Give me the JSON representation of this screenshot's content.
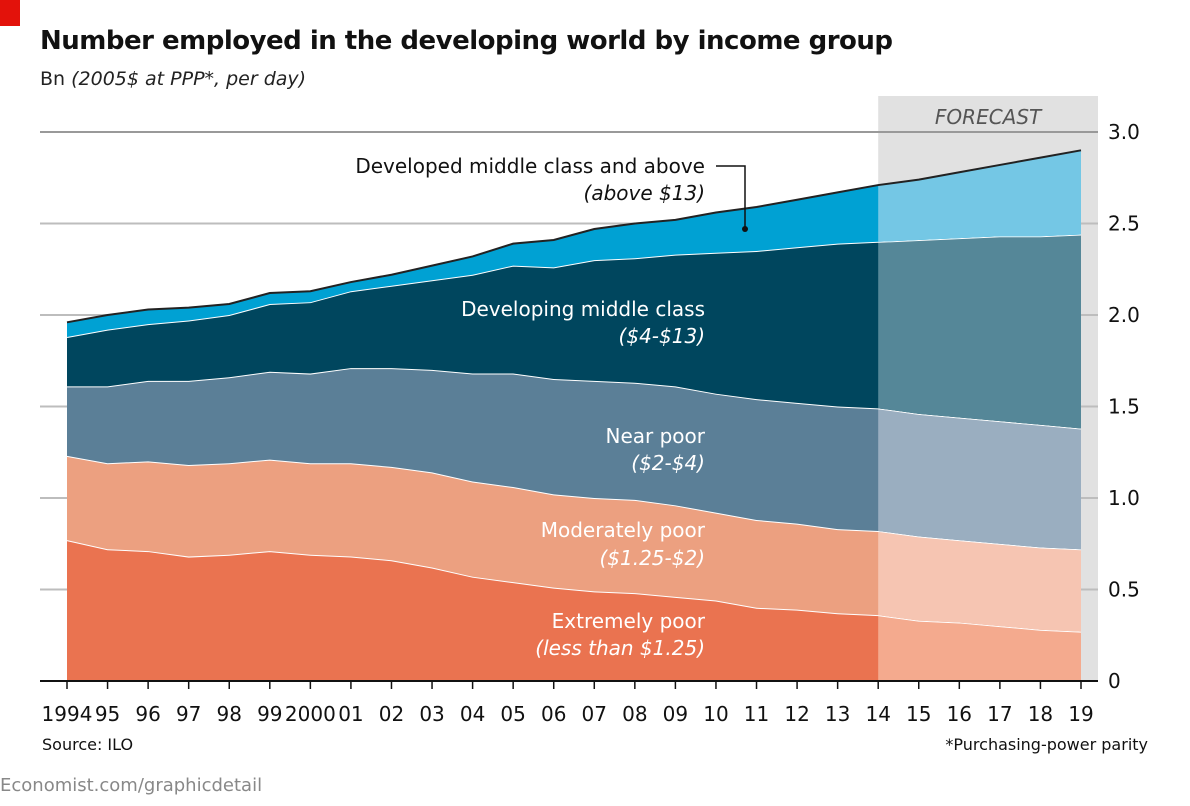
{
  "header": {
    "title": "Number employed in the developing world by income group",
    "subtitle_unit": "Bn",
    "subtitle_detail": "(2005$ at PPP*, per day)"
  },
  "footer": {
    "source": "Source: ILO",
    "note": "*Purchasing-power parity",
    "site": "Economist.com/graphicdetail"
  },
  "chart_data": {
    "type": "area",
    "stacked": true,
    "title": "Number employed in the developing world by income group",
    "ylabel": "Bn (2005$ at PPP*, per day)",
    "ylim": [
      0,
      3.0
    ],
    "yticks": [
      0,
      0.5,
      1.0,
      1.5,
      2.0,
      2.5,
      3.0
    ],
    "ytick_labels": [
      "0",
      "0.5",
      "1.0",
      "1.5",
      "2.0",
      "2.5",
      "3.0"
    ],
    "y_axis_side": "right",
    "grid": true,
    "x": [
      1994,
      1995,
      1996,
      1997,
      1998,
      1999,
      2000,
      2001,
      2002,
      2003,
      2004,
      2005,
      2006,
      2007,
      2008,
      2009,
      2010,
      2011,
      2012,
      2013,
      2014,
      2015,
      2016,
      2017,
      2018,
      2019
    ],
    "xtick_labels": [
      "1994",
      "95",
      "96",
      "97",
      "98",
      "99",
      "2000",
      "01",
      "02",
      "03",
      "04",
      "05",
      "06",
      "07",
      "08",
      "09",
      "10",
      "11",
      "12",
      "13",
      "14",
      "15",
      "16",
      "17",
      "18",
      "19"
    ],
    "forecast": {
      "label": "FORECAST",
      "from": 2014,
      "to": 2019
    },
    "series": [
      {
        "name": "Extremely poor",
        "sub": "(less than $1.25)",
        "color": "#ea7350",
        "forecast_color": "#f4aa8e",
        "label_color": "#ffffff",
        "values": [
          0.77,
          0.72,
          0.71,
          0.68,
          0.69,
          0.71,
          0.69,
          0.68,
          0.66,
          0.62,
          0.57,
          0.54,
          0.51,
          0.49,
          0.48,
          0.46,
          0.44,
          0.4,
          0.39,
          0.37,
          0.36,
          0.33,
          0.32,
          0.3,
          0.28,
          0.27
        ]
      },
      {
        "name": "Moderately poor",
        "sub": "($1.25-$2)",
        "color": "#eca080",
        "forecast_color": "#f6c5b2",
        "label_color": "#ffffff",
        "values": [
          0.46,
          0.47,
          0.49,
          0.5,
          0.5,
          0.5,
          0.5,
          0.51,
          0.51,
          0.52,
          0.52,
          0.52,
          0.51,
          0.51,
          0.51,
          0.5,
          0.48,
          0.48,
          0.47,
          0.46,
          0.46,
          0.46,
          0.45,
          0.45,
          0.45,
          0.45
        ]
      },
      {
        "name": "Near poor",
        "sub": "($2-$4)",
        "color": "#5b7f97",
        "forecast_color": "#9aaec0",
        "label_color": "#ffffff",
        "values": [
          0.38,
          0.42,
          0.44,
          0.46,
          0.47,
          0.48,
          0.49,
          0.52,
          0.54,
          0.56,
          0.59,
          0.62,
          0.63,
          0.64,
          0.64,
          0.65,
          0.65,
          0.66,
          0.66,
          0.67,
          0.67,
          0.67,
          0.67,
          0.67,
          0.67,
          0.66
        ]
      },
      {
        "name": "Developing middle class",
        "sub": "($4-$13)",
        "color": "#00465e",
        "forecast_color": "#558798",
        "label_color": "#ffffff",
        "values": [
          0.27,
          0.31,
          0.31,
          0.33,
          0.34,
          0.37,
          0.39,
          0.42,
          0.45,
          0.49,
          0.54,
          0.59,
          0.61,
          0.66,
          0.68,
          0.72,
          0.77,
          0.81,
          0.85,
          0.89,
          0.91,
          0.95,
          0.98,
          1.01,
          1.03,
          1.06
        ]
      },
      {
        "name": "Developed middle class and above",
        "sub": "(above $13)",
        "color": "#00a1d3",
        "forecast_color": "#74c7e5",
        "label_color": "#111111",
        "values": [
          0.08,
          0.08,
          0.08,
          0.07,
          0.06,
          0.06,
          0.06,
          0.05,
          0.06,
          0.08,
          0.1,
          0.12,
          0.15,
          0.17,
          0.19,
          0.19,
          0.22,
          0.24,
          0.26,
          0.28,
          0.31,
          0.33,
          0.36,
          0.39,
          0.43,
          0.46
        ]
      }
    ]
  }
}
